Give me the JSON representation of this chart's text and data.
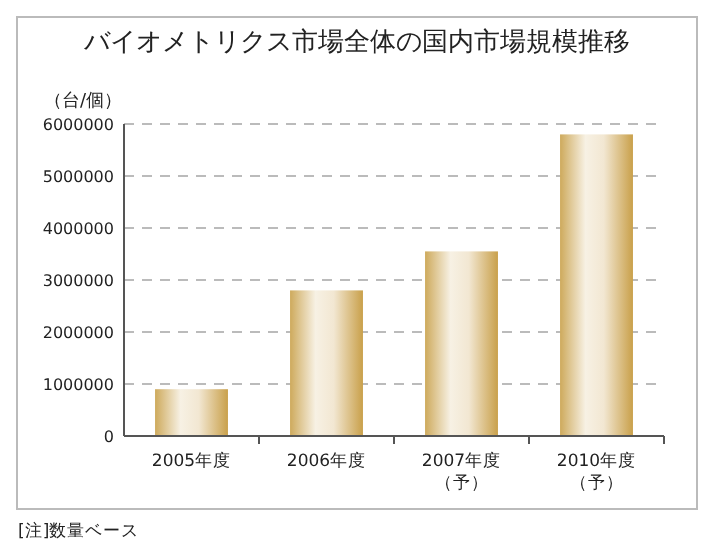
{
  "chart_data": {
    "type": "bar",
    "title": "バイオメトリクス市場全体の国内市場規模推移",
    "ylabel": "（台/個）",
    "categories": [
      "2005年度",
      "2006年度",
      "2007年度（予）",
      "2010年度（予）"
    ],
    "values": [
      900000,
      2800000,
      3550000,
      5800000
    ],
    "color": "#c9a04a",
    "ylim": [
      0,
      6000000
    ],
    "yticks": [
      0,
      1000000,
      2000000,
      3000000,
      4000000,
      5000000,
      6000000
    ],
    "grid": "y",
    "annotations": [
      "[注]数量ベース"
    ]
  }
}
